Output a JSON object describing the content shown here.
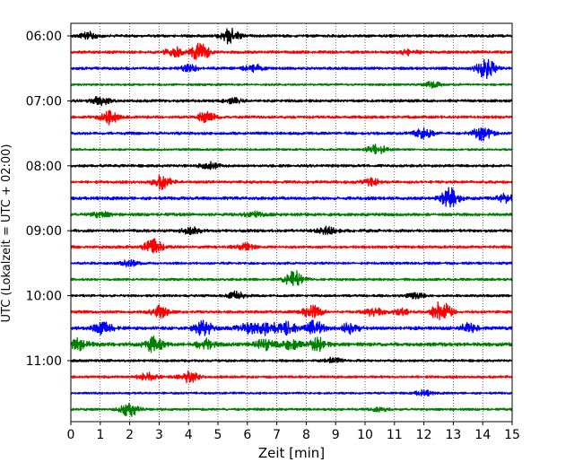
{
  "chart_data": {
    "type": "line",
    "title": "",
    "xlabel": "Zeit  [min]",
    "ylabel": "UTC (Lokalzeit = UTC + 02:00)",
    "xlim": [
      0,
      15
    ],
    "x_ticks": [
      0,
      1,
      2,
      3,
      4,
      5,
      6,
      7,
      8,
      9,
      10,
      11,
      12,
      13,
      14,
      15
    ],
    "x_tick_labels": [
      "0",
      "1",
      "2",
      "3",
      "4",
      "5",
      "6",
      "7",
      "8",
      "9",
      "10",
      "11",
      "12",
      "13",
      "14",
      "15"
    ],
    "y_ticks": [
      "06:00",
      "07:00",
      "08:00",
      "09:00",
      "10:00",
      "11:00"
    ],
    "grid": "vertical dotted at each minute",
    "trace_interval_min": 15,
    "start_time": "06:00",
    "colors": [
      "#000000",
      "#ff0000",
      "#0000ff",
      "#008000"
    ],
    "traces": [
      {
        "start": "06:00",
        "color": "#000000",
        "amp": 0.16,
        "events": [
          {
            "t": 0.6,
            "a": 0.45
          },
          {
            "t": 5.4,
            "a": 0.9
          }
        ]
      },
      {
        "start": "06:15",
        "color": "#ff0000",
        "amp": 0.16,
        "events": [
          {
            "t": 3.5,
            "a": 0.6
          },
          {
            "t": 4.4,
            "a": 1.1
          },
          {
            "t": 11.5,
            "a": 0.3
          }
        ]
      },
      {
        "start": "06:30",
        "color": "#0000ff",
        "amp": 0.16,
        "events": [
          {
            "t": 4.0,
            "a": 0.4
          },
          {
            "t": 6.2,
            "a": 0.5
          },
          {
            "t": 14.1,
            "a": 1.2
          }
        ]
      },
      {
        "start": "06:45",
        "color": "#008000",
        "amp": 0.12,
        "events": [
          {
            "t": 12.3,
            "a": 0.35
          }
        ]
      },
      {
        "start": "07:00",
        "color": "#000000",
        "amp": 0.16,
        "events": [
          {
            "t": 1.0,
            "a": 0.5
          },
          {
            "t": 5.5,
            "a": 0.3
          }
        ]
      },
      {
        "start": "07:15",
        "color": "#ff0000",
        "amp": 0.16,
        "events": [
          {
            "t": 1.3,
            "a": 0.8
          },
          {
            "t": 4.6,
            "a": 0.6
          }
        ]
      },
      {
        "start": "07:30",
        "color": "#0000ff",
        "amp": 0.16,
        "events": [
          {
            "t": 12.0,
            "a": 0.6
          },
          {
            "t": 14.0,
            "a": 0.9
          }
        ]
      },
      {
        "start": "07:45",
        "color": "#008000",
        "amp": 0.12,
        "events": [
          {
            "t": 10.4,
            "a": 0.7
          }
        ]
      },
      {
        "start": "08:00",
        "color": "#000000",
        "amp": 0.16,
        "events": [
          {
            "t": 4.7,
            "a": 0.4
          }
        ]
      },
      {
        "start": "08:15",
        "color": "#ff0000",
        "amp": 0.16,
        "events": [
          {
            "t": 3.1,
            "a": 0.8
          },
          {
            "t": 10.2,
            "a": 0.4
          }
        ]
      },
      {
        "start": "08:30",
        "color": "#0000ff",
        "amp": 0.18,
        "events": [
          {
            "t": 12.9,
            "a": 1.2
          },
          {
            "t": 14.8,
            "a": 0.5
          }
        ]
      },
      {
        "start": "08:45",
        "color": "#008000",
        "amp": 0.18,
        "events": [
          {
            "t": 1.0,
            "a": 0.3
          },
          {
            "t": 6.2,
            "a": 0.35
          }
        ]
      },
      {
        "start": "09:00",
        "color": "#000000",
        "amp": 0.17,
        "events": [
          {
            "t": 4.1,
            "a": 0.4
          },
          {
            "t": 8.7,
            "a": 0.4
          }
        ]
      },
      {
        "start": "09:15",
        "color": "#ff0000",
        "amp": 0.16,
        "events": [
          {
            "t": 2.8,
            "a": 0.9
          },
          {
            "t": 5.9,
            "a": 0.4
          }
        ]
      },
      {
        "start": "09:30",
        "color": "#0000ff",
        "amp": 0.14,
        "events": [
          {
            "t": 2.0,
            "a": 0.35
          }
        ]
      },
      {
        "start": "09:45",
        "color": "#008000",
        "amp": 0.14,
        "events": [
          {
            "t": 7.6,
            "a": 1.1
          }
        ]
      },
      {
        "start": "10:00",
        "color": "#000000",
        "amp": 0.14,
        "events": [
          {
            "t": 5.6,
            "a": 0.45
          },
          {
            "t": 11.7,
            "a": 0.3
          }
        ]
      },
      {
        "start": "10:15",
        "color": "#ff0000",
        "amp": 0.16,
        "events": [
          {
            "t": 3.0,
            "a": 0.7
          },
          {
            "t": 8.2,
            "a": 0.8
          },
          {
            "t": 10.3,
            "a": 0.5
          },
          {
            "t": 11.2,
            "a": 0.4
          },
          {
            "t": 12.6,
            "a": 1.4
          }
        ]
      },
      {
        "start": "10:30",
        "color": "#0000ff",
        "amp": 0.2,
        "events": [
          {
            "t": 1.1,
            "a": 0.7
          },
          {
            "t": 4.5,
            "a": 0.9
          },
          {
            "t": 6.0,
            "a": 0.8
          },
          {
            "t": 6.7,
            "a": 0.8
          },
          {
            "t": 7.4,
            "a": 0.7
          },
          {
            "t": 8.3,
            "a": 0.9
          },
          {
            "t": 9.5,
            "a": 0.6
          },
          {
            "t": 13.5,
            "a": 0.5
          }
        ]
      },
      {
        "start": "10:45",
        "color": "#008000",
        "amp": 0.22,
        "events": [
          {
            "t": 0.3,
            "a": 0.7
          },
          {
            "t": 2.8,
            "a": 0.9
          },
          {
            "t": 4.6,
            "a": 0.6
          },
          {
            "t": 6.6,
            "a": 0.6
          },
          {
            "t": 7.5,
            "a": 0.5
          },
          {
            "t": 8.4,
            "a": 0.7
          }
        ]
      },
      {
        "start": "11:00",
        "color": "#000000",
        "amp": 0.14,
        "events": [
          {
            "t": 8.9,
            "a": 0.3
          }
        ]
      },
      {
        "start": "11:15",
        "color": "#ff0000",
        "amp": 0.15,
        "events": [
          {
            "t": 2.6,
            "a": 0.5
          },
          {
            "t": 4.0,
            "a": 0.7
          }
        ]
      },
      {
        "start": "11:30",
        "color": "#0000ff",
        "amp": 0.12,
        "events": [
          {
            "t": 12.0,
            "a": 0.3
          }
        ]
      },
      {
        "start": "11:45",
        "color": "#008000",
        "amp": 0.14,
        "events": [
          {
            "t": 2.0,
            "a": 0.8
          },
          {
            "t": 10.5,
            "a": 0.2
          }
        ]
      }
    ]
  }
}
